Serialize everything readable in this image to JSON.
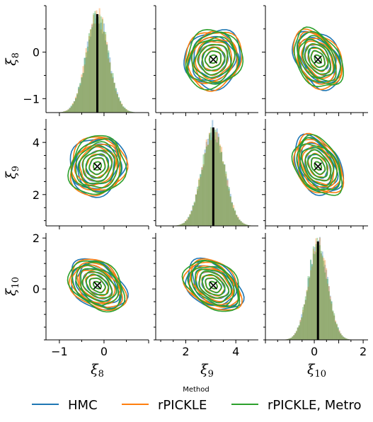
{
  "chart_data": {
    "type": "pairplot",
    "variables": [
      {
        "symbol": "ξ",
        "subscript": "8",
        "range": [
          -1.3,
          1.0
        ],
        "ticks": [
          -1,
          0
        ],
        "tick_labels": [
          "−1",
          "0"
        ],
        "mean": -0.15,
        "sd": 0.25
      },
      {
        "symbol": "ξ",
        "subscript": "9",
        "range": [
          0.8,
          4.9
        ],
        "ticks": [
          2,
          4
        ],
        "tick_labels": [
          "2",
          "4"
        ],
        "mean": 3.1,
        "sd": 0.45
      },
      {
        "symbol": "ξ",
        "subscript": "10",
        "range": [
          -2.0,
          2.2
        ],
        "ticks": [
          0,
          2
        ],
        "tick_labels": [
          "0",
          "2"
        ],
        "x_ticks": [
          0,
          2
        ],
        "x_tick_labels": [
          "0",
          "2"
        ],
        "mean": 0.15,
        "sd": 0.4
      }
    ],
    "correlations": {
      "8_9": 0.1,
      "8_10": -0.35,
      "9_10": -0.35
    },
    "series": [
      {
        "name": "HMC",
        "color": "#1f77b4"
      },
      {
        "name": "rPICKLE",
        "color": "#ff7f0e"
      },
      {
        "name": "rPICKLE, Metro",
        "color": "#2ca02c"
      }
    ],
    "reference_marker": "×",
    "reference_line_color": "#000000",
    "legend": {
      "title": "Method",
      "position": "bottom-center"
    }
  }
}
